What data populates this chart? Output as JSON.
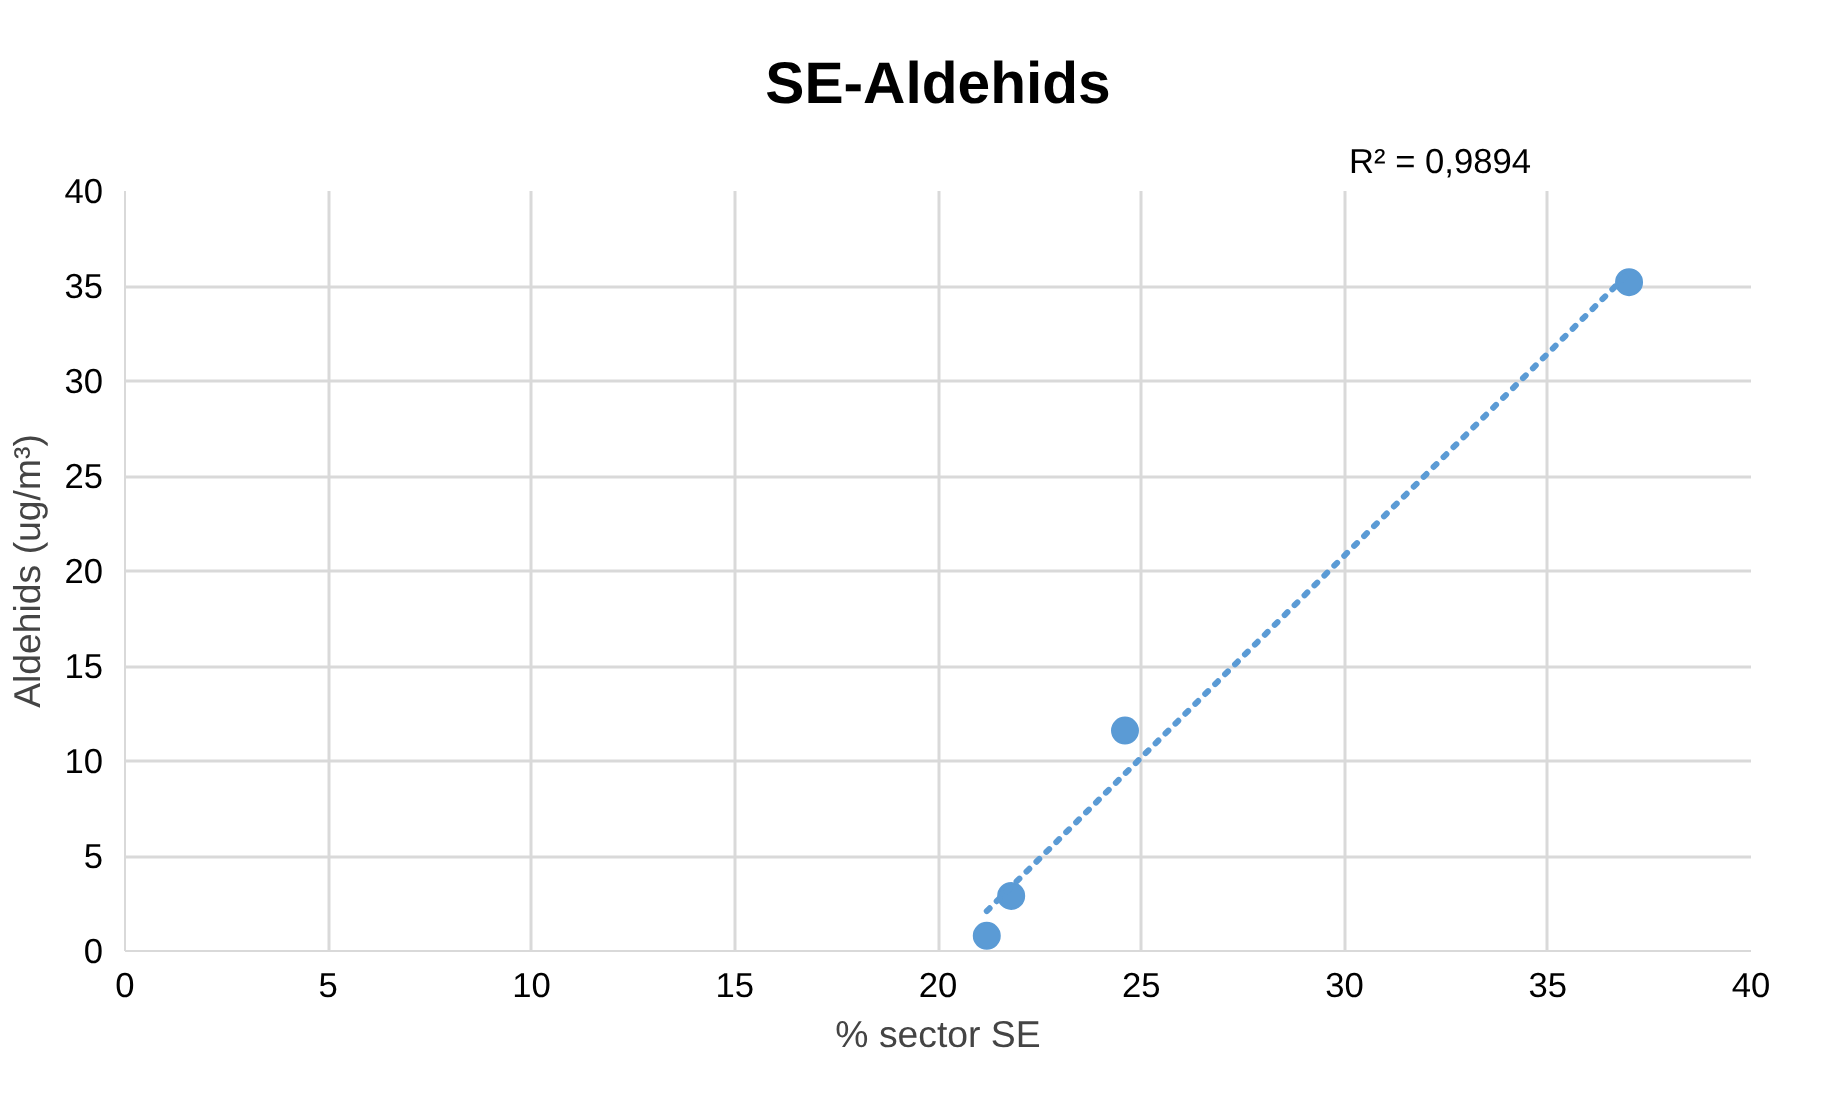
{
  "chart_data": {
    "type": "scatter",
    "title": "SE-Aldehids",
    "xlabel": "% sector SE",
    "ylabel": "Aldehids (ug/m³)",
    "annotations": [
      "R² = 0,9894"
    ],
    "series": [
      {
        "color": "#5b9bd5",
        "marker": "circle",
        "x": [
          21.2,
          21.8,
          24.6,
          37.0
        ],
        "values": [
          0.8,
          2.9,
          11.6,
          35.2
        ]
      },
      {
        "type": "line",
        "color": "#5b9bd5",
        "line_style": "dotted",
        "x": [
          21.2,
          37.0
        ],
        "values": [
          2.1,
          35.7
        ]
      }
    ],
    "xlim": [
      0,
      40
    ],
    "xticks": [
      0,
      5,
      10,
      15,
      20,
      25,
      30,
      35,
      40
    ],
    "ylim": [
      0,
      40
    ],
    "yticks": [
      0,
      5,
      10,
      15,
      20,
      25,
      30,
      35,
      40
    ],
    "grid": true
  }
}
